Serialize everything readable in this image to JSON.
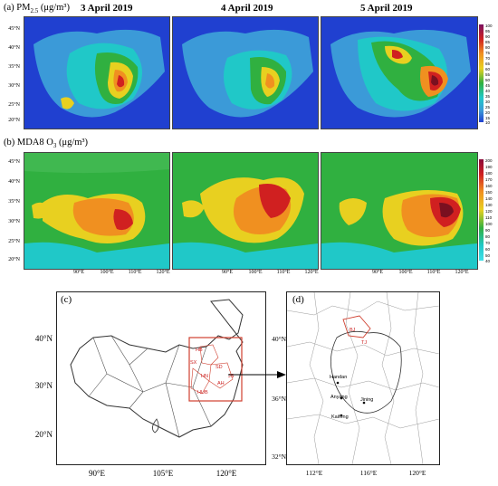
{
  "top_row": {
    "label": "(a) PM",
    "label_sub": "2.5",
    "label_unit": "(μg/m³)",
    "dates": [
      "3 April 2019",
      "4 April 2019",
      "5 April 2019"
    ],
    "lat_ticks": [
      "45°N",
      "40°N",
      "35°N",
      "30°N",
      "25°N",
      "20°N"
    ],
    "colorbar_ticks": [
      "100",
      "95",
      "90",
      "85",
      "80",
      "75",
      "70",
      "65",
      "60",
      "55",
      "50",
      "45",
      "40",
      "35",
      "30",
      "25",
      "20",
      "15",
      "10"
    ]
  },
  "mid_row": {
    "label": "(b) MDA8  O",
    "label_sub": "3",
    "label_unit": "(μg/m³)",
    "lat_ticks": [
      "45°N",
      "40°N",
      "35°N",
      "30°N",
      "25°N",
      "20°N"
    ],
    "lon_ticks": [
      "90°E",
      "100°E",
      "110°E",
      "120°E"
    ],
    "colorbar_ticks": [
      "200",
      "190",
      "180",
      "170",
      "160",
      "150",
      "140",
      "130",
      "120",
      "110",
      "100",
      "90",
      "80",
      "70",
      "60",
      "50",
      "40"
    ]
  },
  "map_c": {
    "label": "(c)",
    "lat_ticks": [
      "40°N",
      "30°N",
      "20°N"
    ],
    "lon_ticks": [
      "90°E",
      "105°E",
      "120°E"
    ],
    "region_labels": [
      "HB",
      "SX",
      "SD",
      "HN",
      "AH",
      "JS",
      "HUB"
    ]
  },
  "map_d": {
    "label": "(d)",
    "lat_ticks": [
      "40°N",
      "36°N",
      "32°N"
    ],
    "lon_ticks": [
      "112°E",
      "116°E",
      "120°E"
    ],
    "cities_red": [
      "BJ",
      "TJ"
    ],
    "cities": [
      "Handan",
      "Anyang",
      "Jining",
      "Kaifeng"
    ]
  },
  "colors": {
    "sea": "#2040d0",
    "land_low": "#3b9ad8",
    "cyan": "#20c8c8",
    "green": "#30b040",
    "yellow": "#e8d020",
    "orange": "#f09020",
    "red": "#d02020",
    "dark": "#7a1020",
    "inset_box": "#d04030"
  }
}
